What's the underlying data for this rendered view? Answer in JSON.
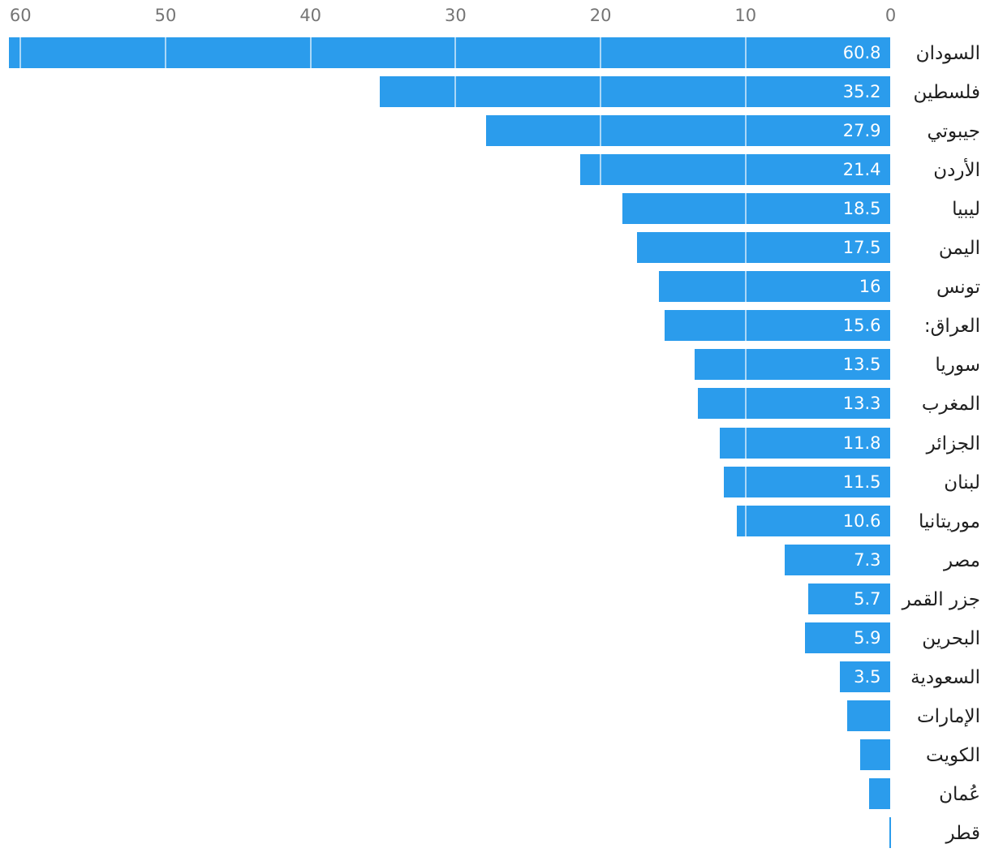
{
  "chart_data": {
    "type": "bar",
    "orientation": "horizontal_rtl",
    "title": "",
    "xlabel": "",
    "ylabel": "",
    "axis_position": "top",
    "x_ticks": [
      "60",
      "50",
      "40",
      "30",
      "20",
      "10",
      "0"
    ],
    "x_tick_values": [
      60,
      50,
      40,
      30,
      20,
      10,
      0
    ],
    "xlim": [
      0,
      61.4
    ],
    "legend": "none",
    "grid": "vertical, visible only over bars",
    "bar_color": "#2B9CEC",
    "gridline_color": "rgba(255,255,255,0.6)",
    "tick_label_color": "#757575",
    "category_label_color": "#1F1F1F",
    "value_label_color": "#FFFFFF",
    "categories": [
      "السودان",
      "فلسطين",
      "جيبوتي",
      "الأردن",
      "ليبيا",
      "اليمن",
      "تونس",
      "العراق:",
      "سوريا",
      "المغرب",
      "الجزائر",
      "لبنان",
      "موريتانيا",
      "مصر",
      "جزر القمر",
      "البحرين",
      "السعودية",
      "الإمارات",
      "الكويت",
      "عُمان",
      "قطر"
    ],
    "values": [
      60.8,
      35.2,
      27.9,
      21.4,
      18.5,
      17.5,
      16,
      15.6,
      13.5,
      13.3,
      11.8,
      11.5,
      10.6,
      7.3,
      5.7,
      5.9,
      3.5,
      3.0,
      2.1,
      1.5,
      0.1
    ],
    "value_labels": [
      "60.8",
      "35.2",
      "27.9",
      "21.4",
      "18.5",
      "17.5",
      "16",
      "15.6",
      "13.5",
      "13.3",
      "11.8",
      "11.5",
      "10.6",
      "7.3",
      "5.7",
      "5.9",
      "3.5",
      "",
      "",
      "",
      ""
    ]
  }
}
